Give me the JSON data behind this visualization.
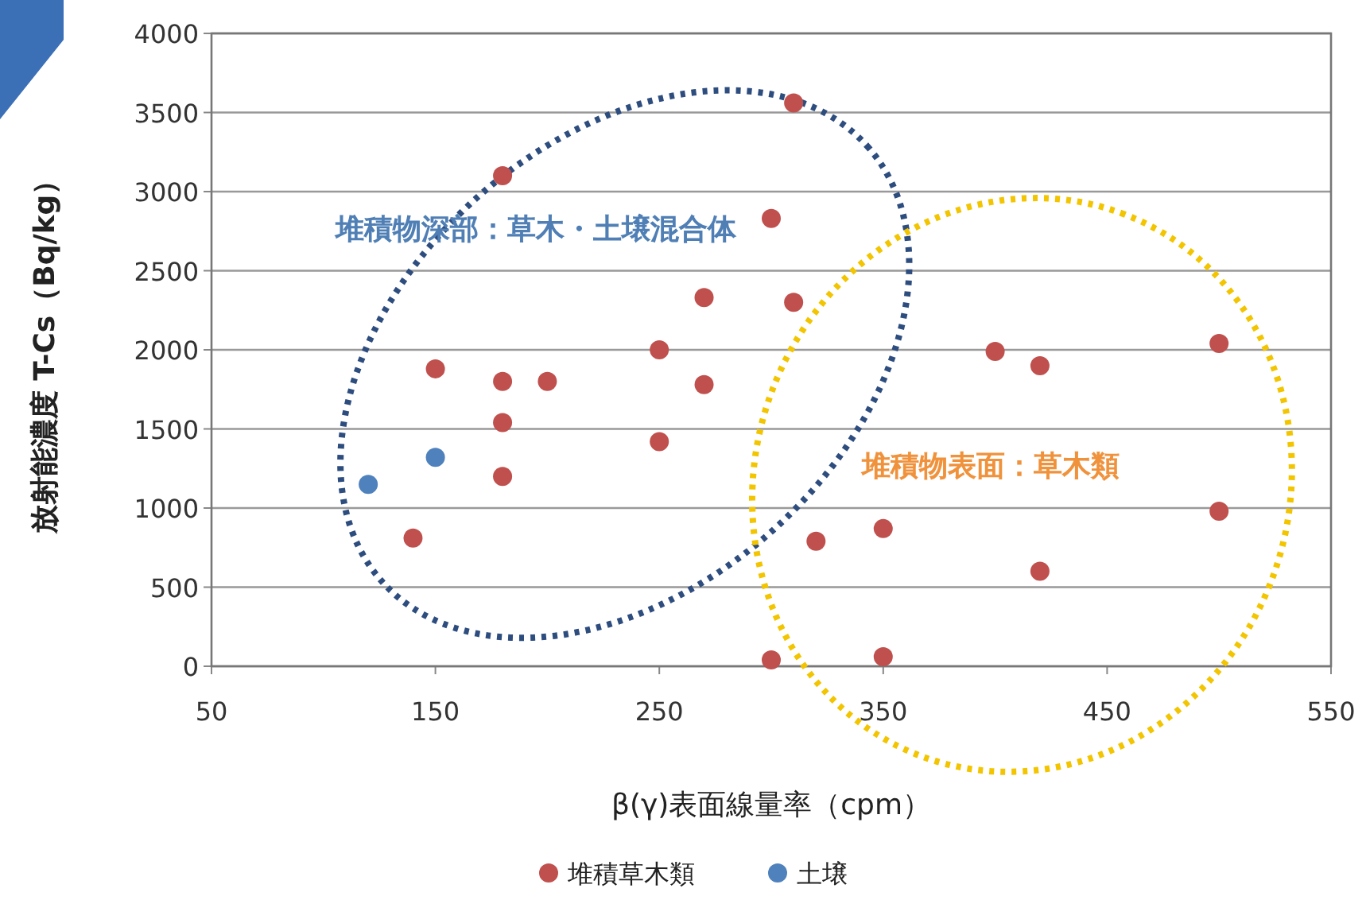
{
  "chart_data": {
    "type": "scatter",
    "xlabel": "β(γ)表面線量率（cpm）",
    "ylabel": "放射能濃度 T-Cs（Bq/kg）",
    "xlim": [
      50,
      550
    ],
    "xticks": [
      50,
      150,
      250,
      350,
      450,
      550
    ],
    "ylim": [
      0,
      4000
    ],
    "yticks": [
      0,
      500,
      1000,
      1500,
      2000,
      2500,
      3000,
      3500,
      4000
    ],
    "grid": "y",
    "legend": "bottom",
    "marker": "circle",
    "series": [
      {
        "name": "堆積草木類",
        "color": "#c0504d",
        "x": [
          180,
          310,
          300,
          150,
          180,
          200,
          180,
          180,
          140,
          250,
          250,
          270,
          270,
          310,
          400,
          420,
          500,
          500,
          420,
          350,
          320,
          300,
          350
        ],
        "values": [
          3100,
          3560,
          2830,
          1880,
          1800,
          1800,
          1540,
          1200,
          810,
          2000,
          1420,
          2330,
          1780,
          2300,
          1990,
          1900,
          2040,
          980,
          600,
          870,
          790,
          40,
          60
        ]
      },
      {
        "name": "土壌",
        "color": "#4f81bd",
        "x": [
          120,
          150
        ],
        "values": [
          1150,
          1320
        ]
      }
    ],
    "annotations": [
      "堆積物深部：草木・土壌混合体",
      "堆積物表面：草木類"
    ]
  }
}
